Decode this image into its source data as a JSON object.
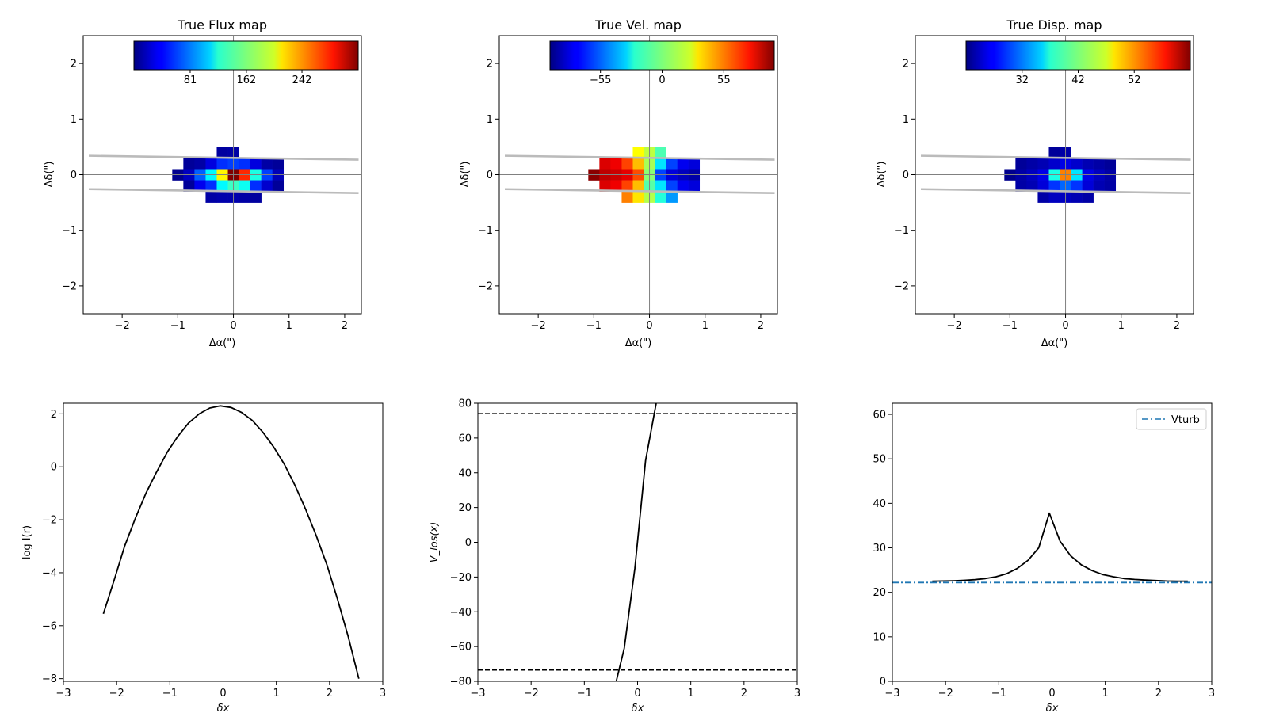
{
  "chart_data": [
    {
      "type": "heatmap",
      "title": "True Flux map",
      "xlabel": "Δα(\")",
      "ylabel": "Δδ(\")",
      "xlim": [
        -2.7,
        2.3
      ],
      "ylim": [
        -2.5,
        2.5
      ],
      "xticks": [
        -2,
        -1,
        0,
        1,
        2
      ],
      "yticks": [
        -2,
        -1,
        0,
        1,
        2
      ],
      "colormap": "jet",
      "colorbar": {
        "vmin": 0,
        "vmax": 323,
        "ticks": [
          81,
          162,
          242
        ]
      },
      "pixel_size": 0.2,
      "rows": [
        {
          "y": 0.4,
          "cells": [
            {
              "x": -0.2,
              "v": 10
            },
            {
              "x": 0.0,
              "v": 12
            }
          ]
        },
        {
          "y": 0.2,
          "cells": [
            {
              "x": -0.8,
              "v": 8
            },
            {
              "x": -0.6,
              "v": 12
            },
            {
              "x": -0.4,
              "v": 30
            },
            {
              "x": -0.2,
              "v": 55
            },
            {
              "x": 0.0,
              "v": 60
            },
            {
              "x": 0.2,
              "v": 55
            },
            {
              "x": 0.4,
              "v": 30
            },
            {
              "x": 0.6,
              "v": 12
            },
            {
              "x": 0.8,
              "v": 8
            }
          ]
        },
        {
          "y": 0.0,
          "cells": [
            {
              "x": -1.0,
              "v": 5
            },
            {
              "x": -0.8,
              "v": 20
            },
            {
              "x": -0.6,
              "v": 70
            },
            {
              "x": -0.4,
              "v": 120
            },
            {
              "x": -0.2,
              "v": 205
            },
            {
              "x": 0.0,
              "v": 323
            },
            {
              "x": 0.2,
              "v": 270
            },
            {
              "x": 0.4,
              "v": 130
            },
            {
              "x": 0.6,
              "v": 60
            },
            {
              "x": 0.8,
              "v": 18
            }
          ]
        },
        {
          "y": -0.2,
          "cells": [
            {
              "x": -0.8,
              "v": 8
            },
            {
              "x": -0.6,
              "v": 35
            },
            {
              "x": -0.4,
              "v": 55
            },
            {
              "x": -0.2,
              "v": 120
            },
            {
              "x": 0.0,
              "v": 140
            },
            {
              "x": 0.2,
              "v": 125
            },
            {
              "x": 0.4,
              "v": 55
            },
            {
              "x": 0.6,
              "v": 25
            },
            {
              "x": 0.8,
              "v": 8
            }
          ]
        },
        {
          "y": -0.4,
          "cells": [
            {
              "x": -0.4,
              "v": 12
            },
            {
              "x": -0.2,
              "v": 14
            },
            {
              "x": 0.0,
              "v": 14
            },
            {
              "x": 0.2,
              "v": 12
            },
            {
              "x": 0.4,
              "v": 10
            }
          ]
        }
      ]
    },
    {
      "type": "heatmap",
      "title": "True Vel. map",
      "xlabel": "Δα(\")",
      "ylabel": "Δδ(\")",
      "xlim": [
        -2.7,
        2.3
      ],
      "ylim": [
        -2.5,
        2.5
      ],
      "xticks": [
        -2,
        -1,
        0,
        1,
        2
      ],
      "yticks": [
        -2,
        -1,
        0,
        1,
        2
      ],
      "colormap": "jet",
      "colorbar": {
        "vmin": -100,
        "vmax": 100,
        "ticks": [
          -55,
          0,
          55
        ]
      },
      "pixel_size": 0.2,
      "rows": [
        {
          "y": 0.4,
          "cells": [
            {
              "x": -0.2,
              "v": 25
            },
            {
              "x": 0.0,
              "v": 12
            },
            {
              "x": 0.2,
              "v": -10
            }
          ]
        },
        {
          "y": 0.2,
          "cells": [
            {
              "x": -0.8,
              "v": 82
            },
            {
              "x": -0.6,
              "v": 78
            },
            {
              "x": -0.4,
              "v": 62
            },
            {
              "x": -0.2,
              "v": 38
            },
            {
              "x": 0.0,
              "v": 8
            },
            {
              "x": 0.2,
              "v": -30
            },
            {
              "x": 0.4,
              "v": -62
            },
            {
              "x": 0.6,
              "v": -78
            },
            {
              "x": 0.8,
              "v": -82
            }
          ]
        },
        {
          "y": 0.0,
          "cells": [
            {
              "x": -1.0,
              "v": 98
            },
            {
              "x": -0.8,
              "v": 88
            },
            {
              "x": -0.6,
              "v": 85
            },
            {
              "x": -0.4,
              "v": 80
            },
            {
              "x": -0.2,
              "v": 60
            },
            {
              "x": 0.0,
              "v": 2
            },
            {
              "x": 0.2,
              "v": -62
            },
            {
              "x": 0.4,
              "v": -82
            },
            {
              "x": 0.6,
              "v": -88
            },
            {
              "x": 0.8,
              "v": -92
            }
          ]
        },
        {
          "y": -0.2,
          "cells": [
            {
              "x": -0.8,
              "v": 82
            },
            {
              "x": -0.6,
              "v": 78
            },
            {
              "x": -0.4,
              "v": 62
            },
            {
              "x": -0.2,
              "v": 38
            },
            {
              "x": 0.0,
              "v": -8
            },
            {
              "x": 0.2,
              "v": -30
            },
            {
              "x": 0.4,
              "v": -62
            },
            {
              "x": 0.6,
              "v": -78
            },
            {
              "x": 0.8,
              "v": -82
            }
          ]
        },
        {
          "y": -0.4,
          "cells": [
            {
              "x": -0.4,
              "v": 50
            },
            {
              "x": -0.2,
              "v": 30
            },
            {
              "x": 0.0,
              "v": 10
            },
            {
              "x": 0.2,
              "v": -18
            },
            {
              "x": 0.4,
              "v": -45
            }
          ]
        }
      ]
    },
    {
      "type": "heatmap",
      "title": "True Disp. map",
      "xlabel": "Δα(\")",
      "ylabel": "Δδ(\")",
      "xlim": [
        -2.7,
        2.3
      ],
      "ylim": [
        -2.5,
        2.5
      ],
      "xticks": [
        -2,
        -1,
        0,
        1,
        2
      ],
      "yticks": [
        -2,
        -1,
        0,
        1,
        2
      ],
      "colormap": "jet",
      "colorbar": {
        "vmin": 22,
        "vmax": 62,
        "ticks": [
          32,
          42,
          52
        ]
      },
      "pixel_size": 0.2,
      "rows": [
        {
          "y": 0.4,
          "cells": [
            {
              "x": -0.2,
              "v": 23
            },
            {
              "x": 0.0,
              "v": 23.5
            }
          ]
        },
        {
          "y": 0.2,
          "cells": [
            {
              "x": -0.8,
              "v": 23
            },
            {
              "x": -0.6,
              "v": 23.5
            },
            {
              "x": -0.4,
              "v": 24
            },
            {
              "x": -0.2,
              "v": 25
            },
            {
              "x": 0.0,
              "v": 26
            },
            {
              "x": 0.2,
              "v": 25
            },
            {
              "x": 0.4,
              "v": 24
            },
            {
              "x": 0.6,
              "v": 23.5
            },
            {
              "x": 0.8,
              "v": 23
            }
          ]
        },
        {
          "y": 0.0,
          "cells": [
            {
              "x": -1.0,
              "v": 22.5
            },
            {
              "x": -0.8,
              "v": 23.5
            },
            {
              "x": -0.6,
              "v": 24.5
            },
            {
              "x": -0.4,
              "v": 26
            },
            {
              "x": -0.2,
              "v": 38
            },
            {
              "x": 0.0,
              "v": 52
            },
            {
              "x": 0.2,
              "v": 36
            },
            {
              "x": 0.4,
              "v": 26
            },
            {
              "x": 0.6,
              "v": 24.5
            },
            {
              "x": 0.8,
              "v": 23.5
            }
          ]
        },
        {
          "y": -0.2,
          "cells": [
            {
              "x": -0.8,
              "v": 23.5
            },
            {
              "x": -0.6,
              "v": 24
            },
            {
              "x": -0.4,
              "v": 25.5
            },
            {
              "x": -0.2,
              "v": 29
            },
            {
              "x": 0.0,
              "v": 31
            },
            {
              "x": 0.2,
              "v": 29
            },
            {
              "x": 0.4,
              "v": 25.5
            },
            {
              "x": 0.6,
              "v": 24
            },
            {
              "x": 0.8,
              "v": 23.5
            }
          ]
        },
        {
          "y": -0.4,
          "cells": [
            {
              "x": -0.4,
              "v": 23.5
            },
            {
              "x": -0.2,
              "v": 24.5
            },
            {
              "x": 0.0,
              "v": 24.5
            },
            {
              "x": 0.2,
              "v": 24
            },
            {
              "x": 0.4,
              "v": 23.5
            }
          ]
        }
      ]
    },
    {
      "type": "line",
      "title": "",
      "xlabel": "δx",
      "ylabel": "log I(r)",
      "xlim": [
        -3,
        3
      ],
      "ylim": [
        -8.1,
        2.4
      ],
      "xticks": [
        -3,
        -2,
        -1,
        0,
        1,
        2,
        3
      ],
      "yticks": [
        -8,
        -6,
        -4,
        -2,
        0,
        2
      ],
      "series": [
        {
          "color": "#000000",
          "style": "solid",
          "x": [
            -2.25,
            -2.05,
            -1.85,
            -1.65,
            -1.45,
            -1.25,
            -1.05,
            -0.85,
            -0.65,
            -0.45,
            -0.25,
            -0.05,
            0.15,
            0.35,
            0.55,
            0.75,
            0.95,
            1.15,
            1.35,
            1.55,
            1.75,
            1.95,
            2.15,
            2.35,
            2.55
          ],
          "y": [
            -5.55,
            -4.3,
            -3.0,
            -1.95,
            -1.0,
            -0.2,
            0.55,
            1.15,
            1.65,
            2.0,
            2.22,
            2.3,
            2.24,
            2.05,
            1.75,
            1.3,
            0.75,
            0.1,
            -0.7,
            -1.6,
            -2.6,
            -3.7,
            -5.0,
            -6.4,
            -8.0
          ]
        }
      ],
      "hlines": []
    },
    {
      "type": "line",
      "title": "",
      "xlabel": "δx",
      "ylabel": "V_los(x)",
      "xlim": [
        -3,
        3
      ],
      "ylim": [
        -80,
        80
      ],
      "xticks": [
        -3,
        -2,
        -1,
        0,
        1,
        2,
        3
      ],
      "yticks": [
        -80,
        -60,
        -40,
        -20,
        0,
        20,
        40,
        60,
        80
      ],
      "series": [
        {
          "color": "#000000",
          "style": "solid",
          "x": [
            -0.4,
            -0.25,
            -0.05,
            0.15,
            0.35
          ],
          "y": [
            -80,
            -61,
            -15,
            47,
            80
          ]
        }
      ],
      "hlines": [
        {
          "y": 74,
          "style": "dashed",
          "color": "#000000"
        },
        {
          "y": -73.5,
          "style": "dashed",
          "color": "#000000"
        }
      ]
    },
    {
      "type": "line",
      "title": "",
      "xlabel": "δx",
      "ylabel": "",
      "xlim": [
        -3,
        3
      ],
      "ylim": [
        0,
        62.5
      ],
      "xticks": [
        -3,
        -2,
        -1,
        0,
        1,
        2,
        3
      ],
      "yticks": [
        0,
        10,
        20,
        30,
        40,
        50,
        60
      ],
      "legend": {
        "position": "top-right",
        "entries": [
          "Vturb"
        ]
      },
      "series": [
        {
          "color": "#000000",
          "style": "solid",
          "x": [
            -2.25,
            -2.05,
            -1.85,
            -1.65,
            -1.45,
            -1.25,
            -1.05,
            -0.85,
            -0.65,
            -0.45,
            -0.25,
            -0.05,
            0.15,
            0.35,
            0.55,
            0.75,
            0.95,
            1.15,
            1.35,
            1.55,
            1.75,
            1.95,
            2.15,
            2.35,
            2.55
          ],
          "y": [
            22.5,
            22.55,
            22.6,
            22.7,
            22.85,
            23.1,
            23.5,
            24.2,
            25.4,
            27.2,
            30.0,
            37.8,
            31.5,
            28.2,
            26.2,
            24.9,
            24.0,
            23.5,
            23.1,
            22.9,
            22.75,
            22.65,
            22.55,
            22.5,
            22.5
          ]
        },
        {
          "name": "Vturb",
          "color": "#1f77b4",
          "style": "dashdot",
          "x": [
            -3,
            3
          ],
          "y": [
            22.2,
            22.2
          ]
        }
      ],
      "hlines": []
    }
  ]
}
